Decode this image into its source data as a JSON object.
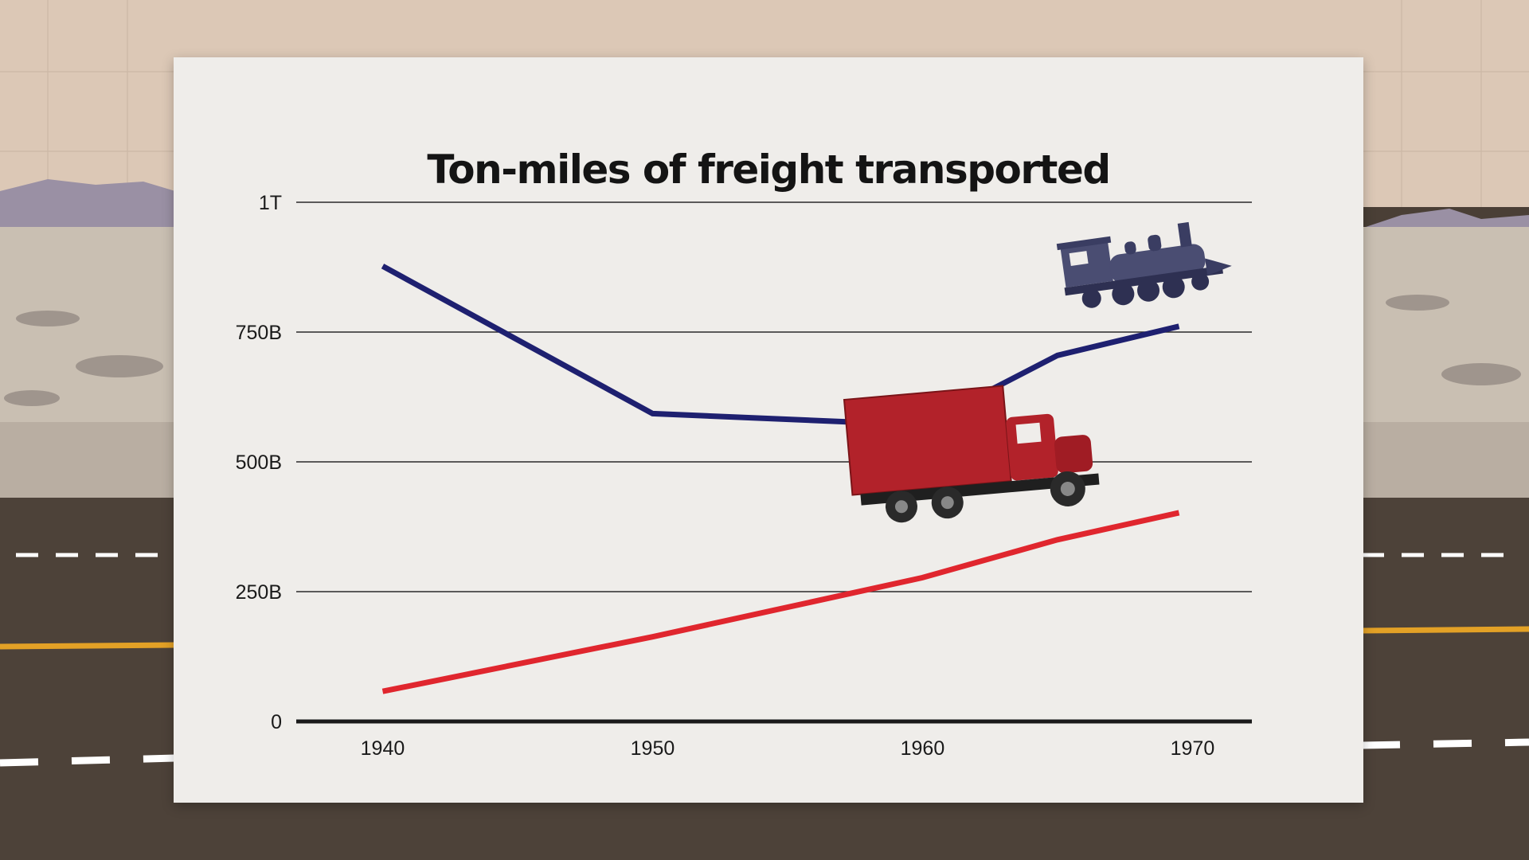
{
  "chart_data": {
    "type": "line",
    "title": "Ton-miles of freight transported",
    "xlabel": "",
    "ylabel": "",
    "x_ticks": [
      "1940",
      "1950",
      "1960",
      "1970"
    ],
    "y_ticks": [
      "0",
      "250B",
      "500B",
      "750B",
      "1T"
    ],
    "ylim": [
      0,
      1000
    ],
    "xlim": [
      1936.8,
      1972.2
    ],
    "grid": true,
    "series": [
      {
        "color": "#1e2070",
        "icon": "locomotive-icon",
        "points": [
          [
            1940,
            877
          ],
          [
            1950,
            593
          ],
          [
            1960,
            571
          ],
          [
            1965,
            705
          ],
          [
            1969.5,
            761
          ]
        ]
      },
      {
        "color": "#e0262e",
        "icon": "truck-icon",
        "points": [
          [
            1940,
            58
          ],
          [
            1950,
            163
          ],
          [
            1960,
            277
          ],
          [
            1965,
            350
          ],
          [
            1969.5,
            402
          ]
        ]
      }
    ]
  }
}
